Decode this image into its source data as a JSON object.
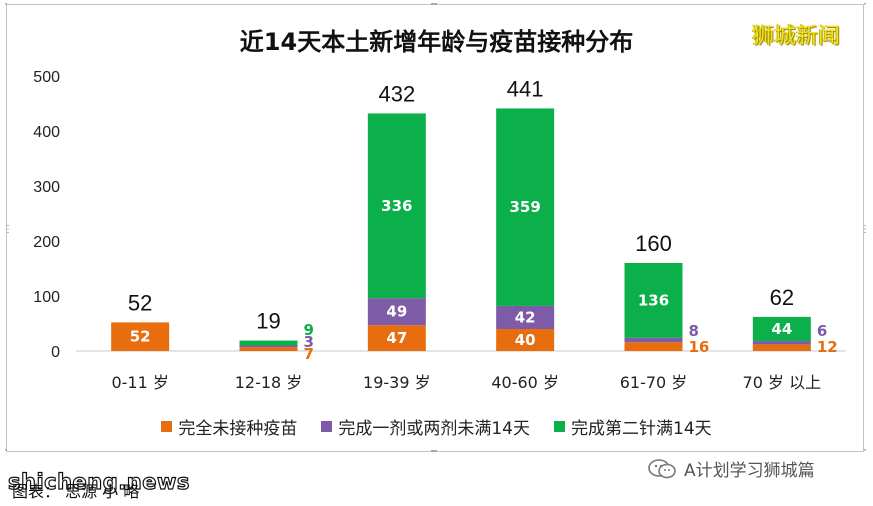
{
  "title": "近14天本土新增年龄与疫苗接种分布",
  "brand": "狮城新闻",
  "colors": {
    "unvaccinated": "#e86d0e",
    "partial": "#7d5ba6",
    "full": "#0cb04a",
    "axis": "#333333",
    "grid": "#bfbfbf"
  },
  "chart_data": {
    "type": "bar",
    "stacked": true,
    "categories": [
      "0-11 岁",
      "12-18 岁",
      "19-39 岁",
      "40-60 岁",
      "61-70 岁",
      "70 岁 以上"
    ],
    "series": [
      {
        "name": "完全未接种疫苗",
        "values": [
          52,
          7,
          47,
          40,
          16,
          12
        ]
      },
      {
        "name": "完成一剂或两剂未满14天",
        "values": [
          0,
          3,
          49,
          42,
          8,
          6
        ]
      },
      {
        "name": "完成第二针满14天",
        "values": [
          0,
          9,
          336,
          359,
          136,
          44
        ]
      }
    ],
    "totals": [
      52,
      19,
      432,
      441,
      160,
      62
    ],
    "ylim": [
      0,
      500
    ],
    "yticks": [
      0,
      100,
      200,
      300,
      400,
      500
    ],
    "grid": false,
    "legend": "bottom"
  },
  "footer": {
    "watermark_left": "shicheng.news",
    "source": "图表： 思源 小 略",
    "watermark_right": "A计划学习狮城篇"
  }
}
